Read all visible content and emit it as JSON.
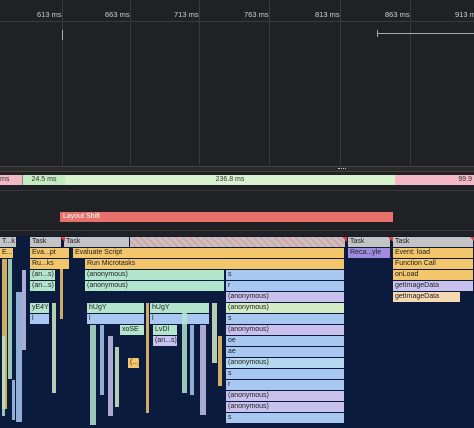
{
  "ruler": {
    "ticks": [
      "613 ms",
      "663 ms",
      "713 ms",
      "763 ms",
      "813 ms",
      "863 ms",
      "913 ms"
    ]
  },
  "summary": {
    "segments": [
      "ms",
      "24.5 ms",
      "236.8 ms",
      "99.9"
    ]
  },
  "layout_shift": "Layout Shift",
  "flame": {
    "blocks": [
      "T...k",
      "Task",
      "Task",
      "Task",
      "Task",
      "E...t",
      "Eva...pt",
      "Evaluate Script",
      "Reca...yle",
      "Event: load",
      "Ru...ks",
      "Run Microtasks",
      "Function Call",
      "(an...s)",
      "(anonymous)",
      "s",
      "onLoad",
      "(an...s)",
      "(anonymous)",
      "r",
      "getImageData",
      "(anonymous)",
      "getImageData",
      "yE4Y",
      "hUgY",
      "hUgY",
      "(anonymous)",
      "l",
      "l",
      "l",
      "s",
      "xoSE",
      "LvDl",
      "(anonymous)",
      "(an...s)",
      "oe",
      "ae",
      "(...)",
      "(anonymous)",
      "s",
      "r",
      "(anonymous)",
      "(anonymous)",
      "s"
    ]
  }
}
